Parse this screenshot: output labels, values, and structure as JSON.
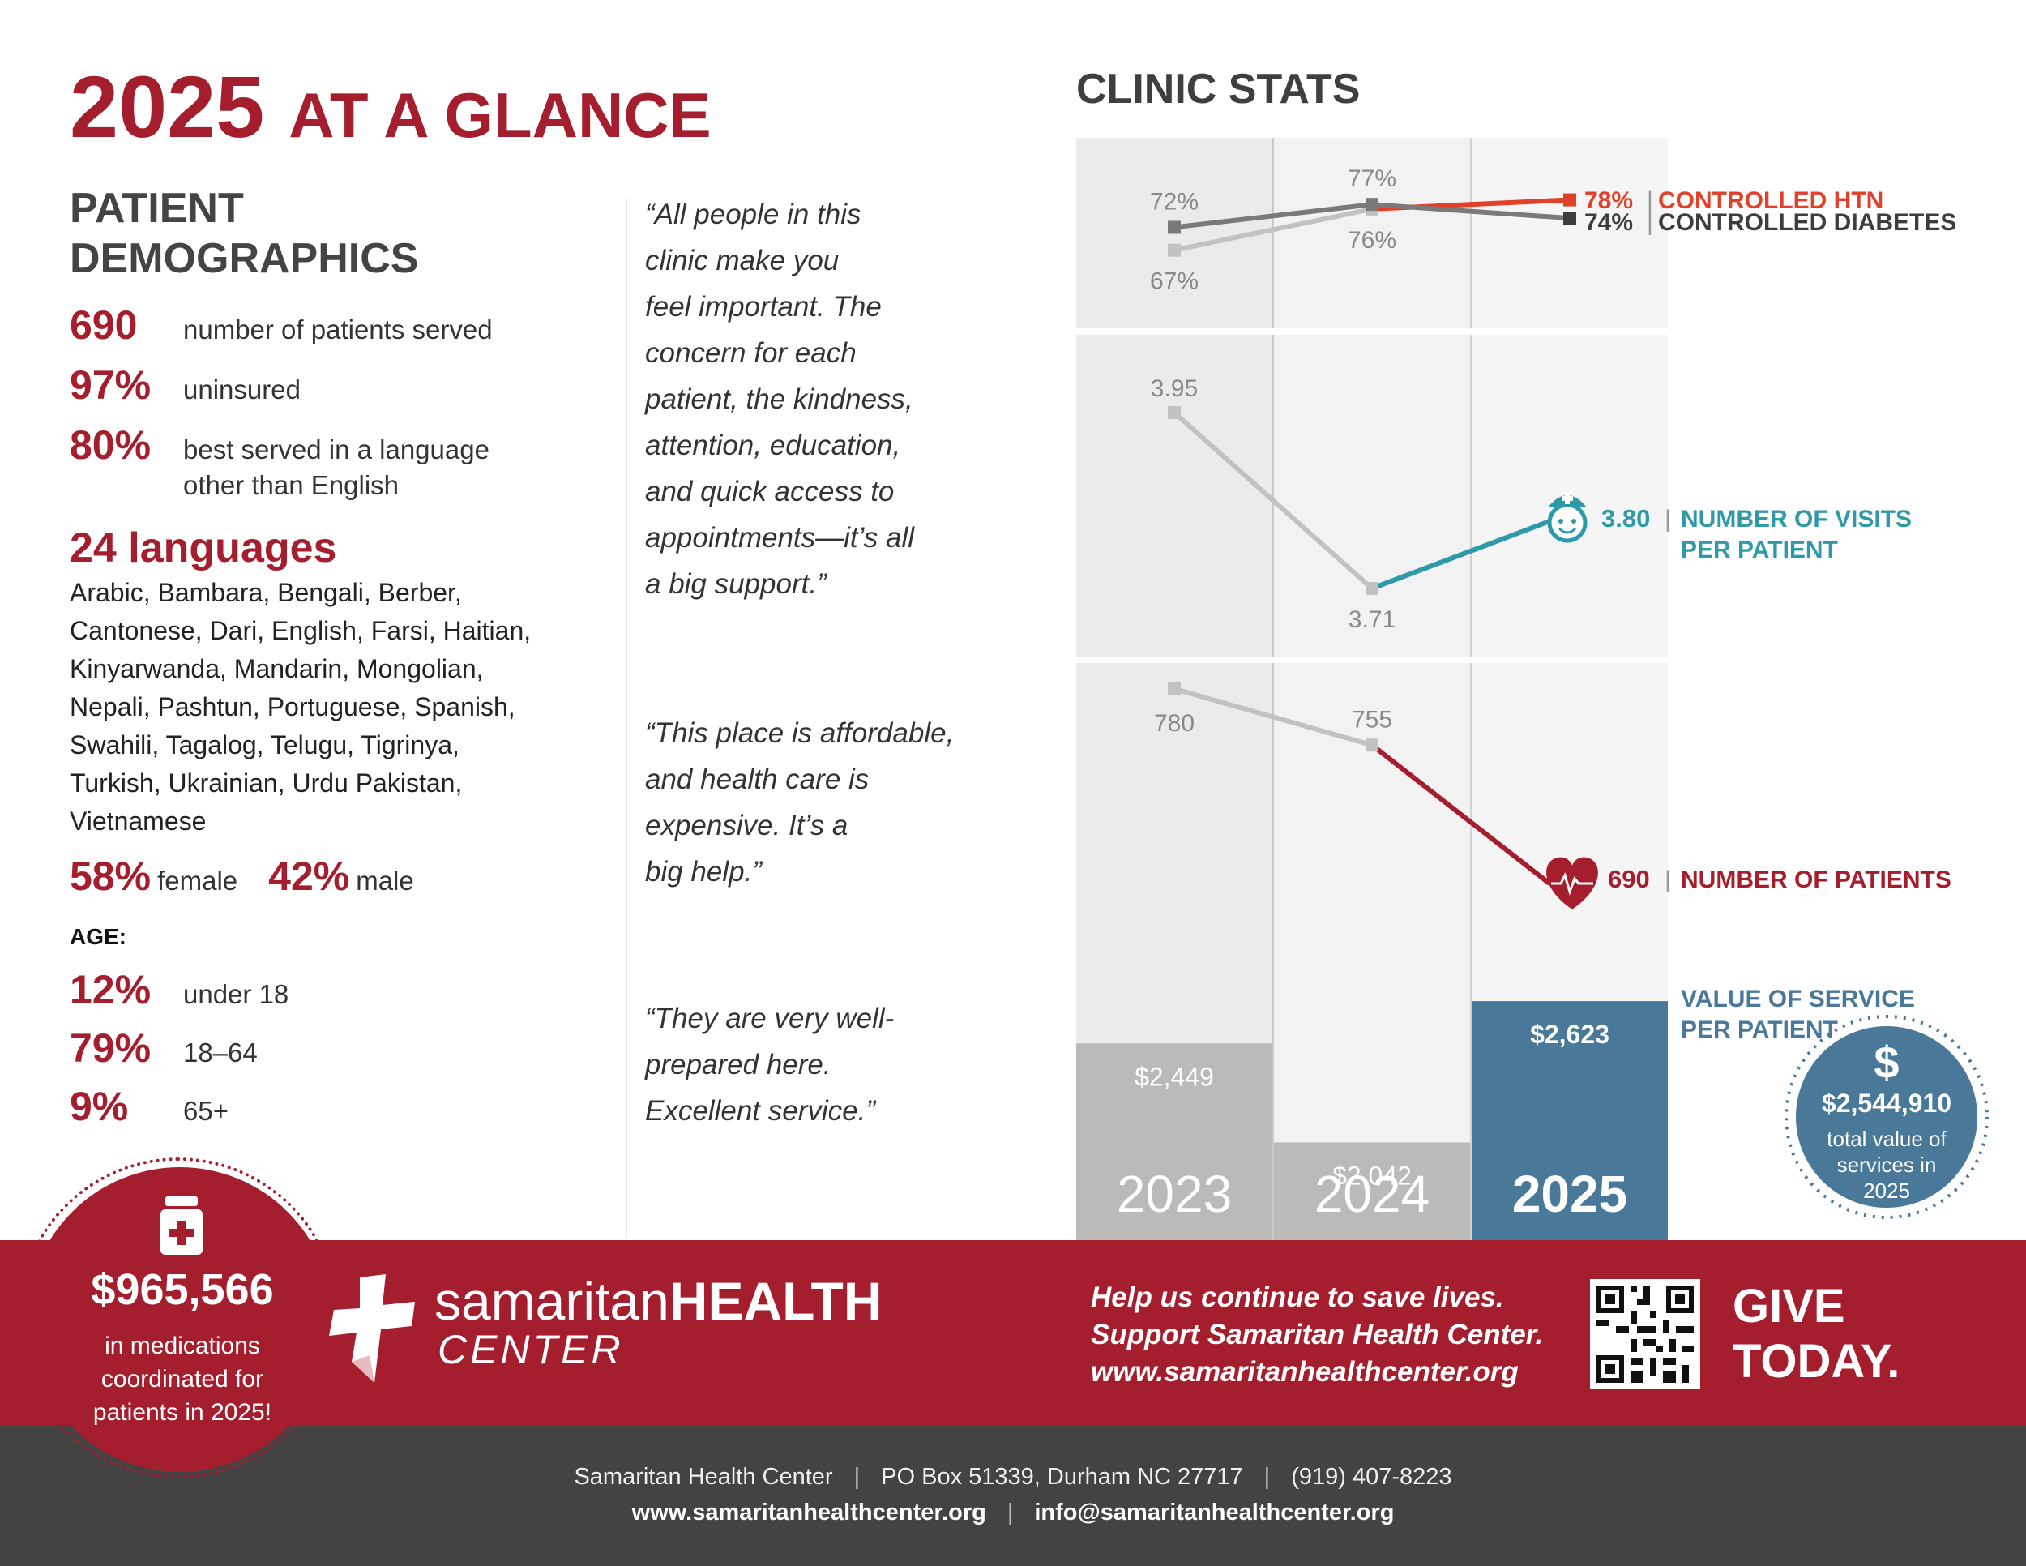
{
  "header": {
    "year": "2025",
    "title": "AT A GLANCE"
  },
  "demographics": {
    "title": "PATIENT DEMOGRAPHICS",
    "stats": [
      {
        "value": "690",
        "label": "number of patients served"
      },
      {
        "value": "97%",
        "label": "uninsured"
      },
      {
        "value": "80%",
        "label": "best served in a language other than English"
      }
    ],
    "languages_heading": "24 languages",
    "languages_list": "Arabic, Bambara, Bengali, Berber, Cantonese, Dari, English, Farsi, Haitian, Kinyarwanda, Mandarin, Mongolian, Nepali, Pashtun, Portuguese,  Spanish, Swahili, Tagalog, Telugu, Tigrinya, Turkish, Ukrainian, Urdu Pakistan, Vietnamese",
    "gender": {
      "female_value": "58%",
      "female_label": "female",
      "male_value": "42%",
      "male_label": "male"
    },
    "age_heading": "AGE:",
    "age": [
      {
        "value": "12%",
        "label": "under 18"
      },
      {
        "value": "79%",
        "label": "18–64"
      },
      {
        "value": "9%",
        "label": "65+"
      }
    ]
  },
  "quotes": [
    "“All people in this\n clinic make you\n feel important. The\n concern for each\n patient, the kindness,\n attention, education,\n and quick access to\n appointments—it’s all\n a big support.”",
    "“This place is affordable,\n and health care is\n expensive. It’s a\n big help.”",
    "“They are very well-\n prepared here.\n Excellent service.”"
  ],
  "clinic_stats": {
    "title": "CLINIC STATS",
    "years": [
      "2023",
      "2024",
      "2025"
    ],
    "colors": {
      "htn": "#e2402b",
      "diabetes": "#3d3d3d",
      "visits": "#2f9aa7",
      "patients": "#a51e2d",
      "value_2025": "#4a7898",
      "gray_bar": "#bcb9b9"
    }
  },
  "chart_data": [
    {
      "type": "line",
      "x": [
        "2023",
        "2024",
        "2025"
      ],
      "series": [
        {
          "name": "CONTROLLED HTN",
          "values": [
            67,
            76,
            78
          ],
          "labels": [
            "67%",
            "76%",
            "78%"
          ]
        },
        {
          "name": "CONTROLLED DIABETES",
          "values": [
            72,
            77,
            74
          ],
          "labels": [
            "72%",
            "77%",
            "74%"
          ]
        }
      ]
    },
    {
      "type": "line",
      "x": [
        "2023",
        "2024",
        "2025"
      ],
      "series": [
        {
          "name": "NUMBER OF VISITS PER PATIENT",
          "values": [
            3.95,
            3.71,
            3.8
          ],
          "labels": [
            "3.95",
            "3.71",
            "3.80"
          ]
        }
      ]
    },
    {
      "type": "line",
      "x": [
        "2023",
        "2024",
        "2025"
      ],
      "series": [
        {
          "name": "NUMBER OF PATIENTS",
          "values": [
            780,
            755,
            690
          ],
          "labels": [
            "780",
            "755",
            "690"
          ]
        }
      ]
    },
    {
      "type": "bar",
      "categories": [
        "2023",
        "2024",
        "2025"
      ],
      "values": [
        2449,
        2042,
        2623
      ],
      "labels": [
        "$2,449",
        "$2,042",
        "$2,623"
      ],
      "series_label": "VALUE OF SERVICE PER PATIENT"
    }
  ],
  "value_badge": {
    "symbol": "$",
    "amount": "$2,544,910",
    "text": "total value of services in 2025"
  },
  "medications": {
    "amount": "$965,566",
    "text": "in medications coordinated for patients in 2025!"
  },
  "logo": {
    "name_light": "samaritan",
    "name_bold": "HEALTH",
    "sub": "CENTER"
  },
  "cta": {
    "text": "Help us continue to save lives.\nSupport Samaritan Health Center.\nwww.samaritanhealthcenter.org",
    "give": "GIVE\nTODAY."
  },
  "footer": {
    "org": "Samaritan Health Center",
    "po": "PO Box 51339, Durham NC 27717",
    "phone": "(919) 407-8223",
    "web": "www.samaritanhealthcenter.org",
    "email": "info@samaritanhealthcenter.org"
  }
}
